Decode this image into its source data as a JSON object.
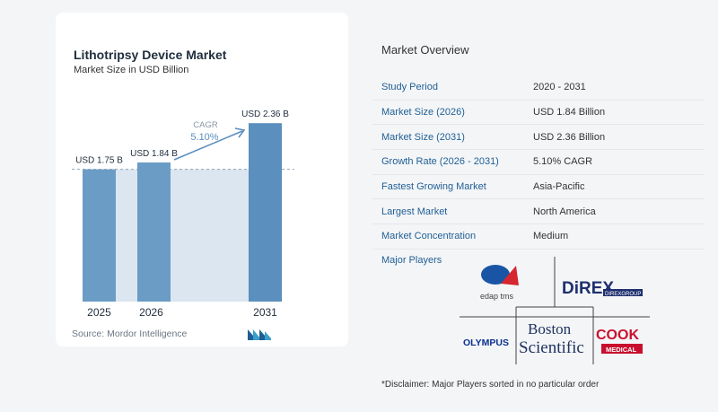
{
  "chart_data": {
    "type": "bar",
    "title": "Lithotripsy Device Market",
    "subtitle": "Market Size in USD Billion",
    "categories": [
      "2025",
      "2026",
      "2031"
    ],
    "values": [
      1.75,
      1.84,
      2.36
    ],
    "value_labels": [
      "USD 1.75 B",
      "USD 1.84 B",
      "USD 2.36 B"
    ],
    "cagr_label": "CAGR",
    "cagr_value": "5.10%",
    "ylim": [
      0,
      2.6
    ],
    "bar_color": "#6b9cc6",
    "bar_color_highlight": "#5a8fbe",
    "reference_fill": "#dbe6f0",
    "grid": false
  },
  "source": "Source:  Mordor Intelligence",
  "overview": {
    "title": "Market Overview",
    "rows": [
      {
        "key": "Study Period",
        "value": "2020 - 2031"
      },
      {
        "key": "Market Size (2026)",
        "value": "USD 1.84 Billion"
      },
      {
        "key": "Market Size (2031)",
        "value": "USD 2.36 Billion"
      },
      {
        "key": "Growth Rate (2026 - 2031)",
        "value": "5.10% CAGR"
      },
      {
        "key": "Fastest Growing Market",
        "value": "Asia-Pacific"
      },
      {
        "key": "Largest Market",
        "value": "North America"
      },
      {
        "key": "Market Concentration",
        "value": "Medium"
      }
    ]
  },
  "players": {
    "title": "Major Players",
    "logos": [
      {
        "name": "EDAP TMS",
        "text": "edap tms"
      },
      {
        "name": "DIREX",
        "text": "DiREX",
        "subtext": "DIREXGROUP"
      },
      {
        "name": "Olympus",
        "text": "OLYMPUS"
      },
      {
        "name": "Boston Scientific",
        "text1": "Boston",
        "text2": "Scientific"
      },
      {
        "name": "Cook Medical",
        "text": "COOK",
        "subtext": "MEDICAL"
      }
    ]
  },
  "disclaimer": "*Disclaimer: Major Players sorted in no particular order",
  "colors": {
    "accent": "#1f5f95",
    "text": "#1f2d3d",
    "cook_red": "#c8102e",
    "olympus_blue": "#0a2f8f",
    "direx_navy": "#1e2f6e"
  }
}
